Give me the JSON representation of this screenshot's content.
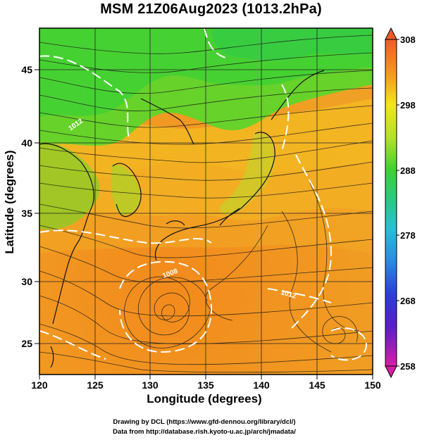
{
  "title": "MSM 21Z06Aug2023 (1013.2hPa)",
  "axes": {
    "xlabel": "Longitude (degrees)",
    "ylabel": "Latitude  (degrees)",
    "x_ticks": [
      "120",
      "125",
      "130",
      "135",
      "140",
      "145",
      "150"
    ],
    "y_ticks": [
      "25",
      "30",
      "35",
      "40",
      "45"
    ],
    "x_range": [
      120,
      150
    ],
    "y_range": [
      22.5,
      47.6
    ]
  },
  "colorbar": {
    "ticks": [
      "308",
      "298",
      "288",
      "278",
      "268",
      "258"
    ],
    "range": [
      258,
      308
    ]
  },
  "contour_labels": [
    "1012",
    "1008",
    "1012"
  ],
  "credits": {
    "line1": "Drawing by DCL (https://www.gfd-dennou.org/library/dcl/)",
    "line2": "Data from http://database.rish.kyoto-u.ac.jp/arch/jmadata/"
  },
  "colors": {
    "warm": "#f08a1e",
    "mid": "#f3c41e",
    "cool": "#5fd12a"
  }
}
